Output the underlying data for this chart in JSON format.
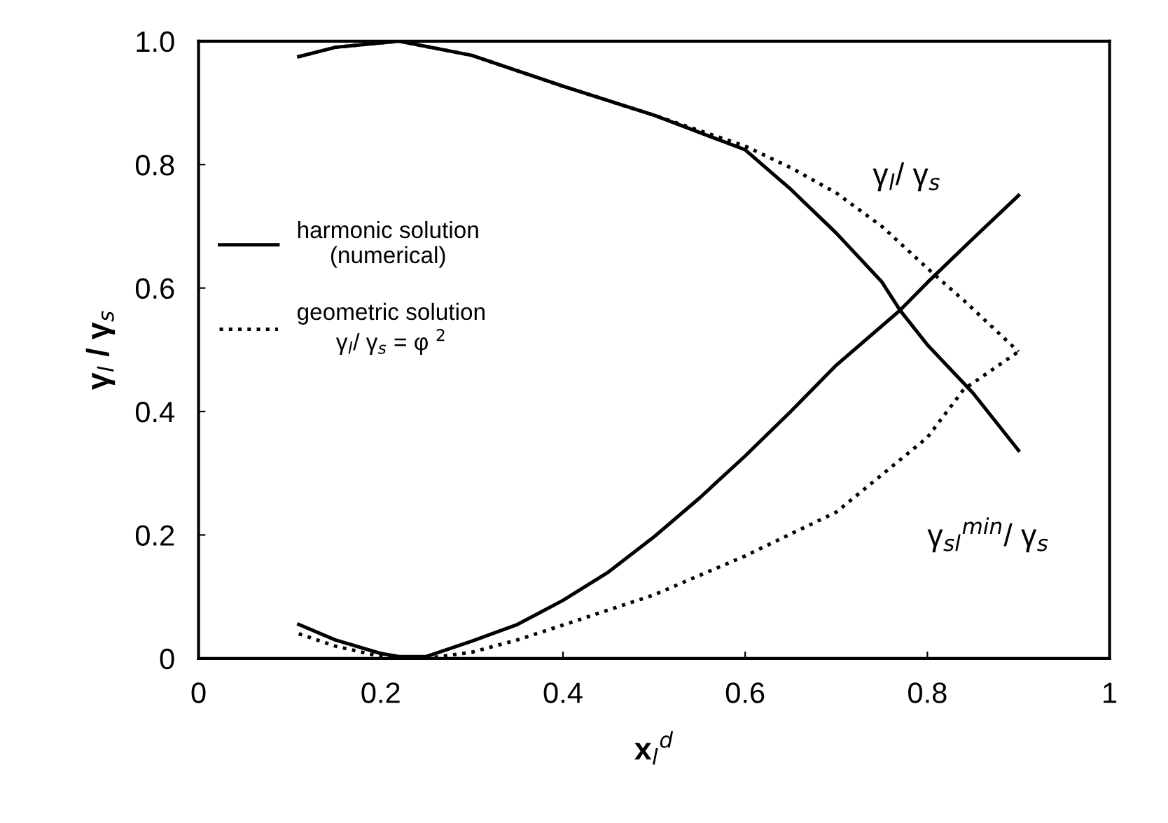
{
  "chart_data": {
    "type": "line",
    "xlabel": "x$_{l}$$^{d}$",
    "ylabel": "γ$_{l}$ / γ$_{s}$",
    "xlim": [
      0,
      1
    ],
    "ylim": [
      0,
      1
    ],
    "xticks": [
      0,
      0.2,
      0.4,
      0.6,
      0.8,
      1
    ],
    "yticks": [
      0,
      0.2,
      0.4,
      0.6,
      0.8,
      {
        "value": 1,
        "label": "1.0"
      }
    ],
    "grid": false,
    "legend": "left",
    "marker": "none",
    "series": [
      {
        "name": "harmonic solution\n(numerical)",
        "color": "#000000",
        "line_style": "solid",
        "x": [
          0.11,
          0.15,
          0.22,
          0.3,
          0.4,
          0.5,
          0.6,
          0.65,
          0.7,
          0.75,
          0.77,
          0.8,
          0.85,
          0.9
        ],
        "values": [
          0.975,
          0.99,
          1.0,
          0.977,
          0.927,
          0.88,
          0.824,
          0.76,
          0.689,
          0.61,
          0.564,
          0.508,
          0.43,
          0.337
        ]
      },
      {
        "name": "geometric solution\nγ$_{l}$/ γ$_{s}$ = φ $^{2}$",
        "color": "#000000",
        "line_style": "dotted",
        "x": [
          0.11,
          0.15,
          0.22,
          0.3,
          0.4,
          0.5,
          0.6,
          0.65,
          0.7,
          0.75,
          0.8,
          0.84,
          0.9
        ],
        "values": [
          0.975,
          0.99,
          1.0,
          0.977,
          0.927,
          0.88,
          0.83,
          0.795,
          0.754,
          0.7,
          0.632,
          0.58,
          0.497
        ]
      },
      {
        "color": "#000000",
        "line_style": "solid",
        "x": [
          0.11,
          0.15,
          0.2,
          0.22,
          0.25,
          0.3,
          0.35,
          0.4,
          0.45,
          0.5,
          0.55,
          0.6,
          0.65,
          0.7,
          0.77,
          0.8,
          0.85,
          0.9
        ],
        "values": [
          0.055,
          0.03,
          0.008,
          0.003,
          0.003,
          0.028,
          0.055,
          0.094,
          0.14,
          0.197,
          0.26,
          0.328,
          0.4,
          0.475,
          0.564,
          0.609,
          0.68,
          0.75
        ]
      },
      {
        "color": "#000000",
        "line_style": "dotted",
        "x": [
          0.11,
          0.15,
          0.2,
          0.25,
          0.3,
          0.35,
          0.4,
          0.5,
          0.6,
          0.7,
          0.8,
          0.84,
          0.9
        ],
        "values": [
          0.04,
          0.02,
          0.003,
          0.0,
          0.01,
          0.03,
          0.054,
          0.103,
          0.166,
          0.237,
          0.358,
          0.436,
          0.497
        ]
      }
    ],
    "annotations": [
      "γ$_{l}$/ γ$_{s}$",
      "γ$_{sl}$$^{min}$/ γ$_{s}$"
    ]
  }
}
